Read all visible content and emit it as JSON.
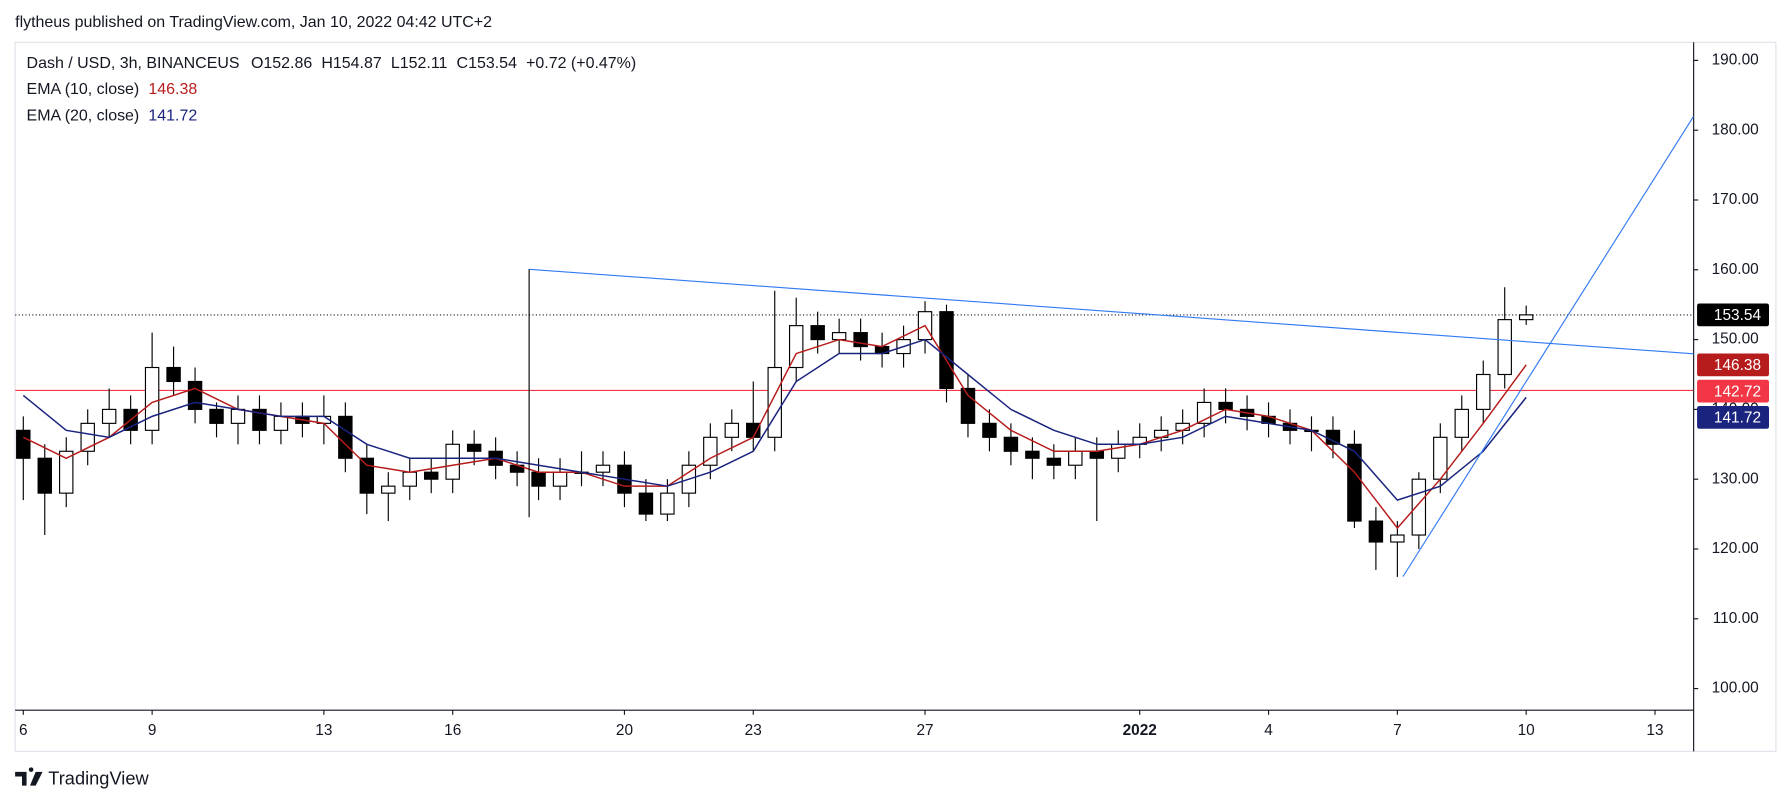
{
  "header": {
    "author_line": "flytheus published on TradingView.com, Jan 10, 2022 04:42 UTC+2",
    "brand": "TradingView"
  },
  "chart_data": {
    "type": "candlestick",
    "title": "Dash / USD, 3h, BINANCEUS",
    "ohlc_labels": [
      "O",
      "H",
      "L",
      "C"
    ],
    "change": "+0.72 (+0.47%)",
    "x": [
      0,
      0.5,
      1,
      1.5,
      2,
      2.5,
      3,
      3.5,
      4,
      4.5,
      5,
      5.5,
      6,
      6.5,
      7,
      7.5,
      8,
      8.5,
      9,
      9.5,
      10,
      10.5,
      11,
      11.5,
      12,
      12.5,
      13,
      13.5,
      14,
      14.5,
      15,
      15.5,
      16,
      16.5,
      17,
      17.5,
      18,
      18.5,
      19,
      19.5,
      20,
      20.5,
      21,
      21.5,
      22,
      22.5,
      23,
      23.5,
      24,
      24.5,
      25,
      25.5,
      26,
      26.5,
      27,
      27.5,
      28,
      28.5,
      29,
      29.5,
      30,
      30.5,
      31,
      31.5,
      32,
      32.5,
      33,
      33.5,
      34,
      34.5,
      35
    ],
    "open": [
      137,
      133,
      128,
      134,
      138,
      140,
      137,
      146,
      144,
      140,
      138,
      140,
      137,
      139,
      138,
      139,
      133,
      128,
      129,
      131,
      130,
      135,
      134,
      132,
      131,
      129,
      131,
      131,
      132,
      128,
      125,
      128,
      132,
      136,
      138,
      136,
      146,
      152,
      150,
      151,
      149,
      148,
      150,
      154,
      143,
      138,
      136,
      134,
      133,
      132,
      134,
      133,
      135,
      136,
      137,
      138,
      141,
      140,
      139,
      138,
      137,
      137,
      135,
      124,
      121,
      122,
      130,
      136,
      140,
      145,
      152.86
    ],
    "high": [
      139,
      135,
      136,
      140,
      143,
      142,
      151,
      149,
      146,
      141,
      142,
      142,
      141,
      141,
      142,
      141,
      135,
      131,
      133,
      133,
      137,
      137,
      136,
      134,
      133,
      133,
      134,
      134,
      134,
      130,
      130,
      134,
      138,
      140,
      144,
      157,
      156,
      154,
      153,
      153,
      151,
      152,
      155.5,
      155,
      145,
      140,
      138,
      136,
      135,
      136,
      136,
      137,
      138,
      139,
      140,
      143,
      143,
      142,
      141,
      140,
      139,
      139,
      137,
      126,
      124,
      131,
      138,
      142,
      147,
      157.5,
      154.87
    ],
    "low": [
      127,
      122,
      126,
      132,
      136,
      135,
      135,
      142,
      138,
      136,
      135,
      135,
      135,
      136,
      135,
      131,
      125,
      124,
      127,
      128,
      128,
      132,
      130,
      129,
      127,
      127,
      129,
      129,
      126,
      124,
      124,
      126,
      130,
      134,
      134,
      134,
      144,
      148,
      148,
      147,
      146,
      146,
      148,
      141,
      136,
      134,
      132,
      130,
      130,
      130,
      124,
      131,
      133,
      134,
      135,
      136,
      138,
      137,
      136,
      135,
      134,
      133,
      123,
      117,
      116,
      120,
      128,
      134,
      138,
      143,
      152.11
    ],
    "close": [
      133,
      128,
      134,
      138,
      140,
      137,
      146,
      144,
      140,
      138,
      140,
      137,
      139,
      138,
      139,
      133,
      128,
      129,
      131,
      130,
      135,
      134,
      132,
      131,
      129,
      131,
      131,
      132,
      128,
      125,
      128,
      132,
      136,
      138,
      136,
      146,
      152,
      150,
      151,
      149,
      148,
      150,
      154,
      143,
      138,
      136,
      134,
      133,
      132,
      134,
      133,
      135,
      136,
      137,
      138,
      141,
      140,
      139,
      138,
      137,
      137,
      135,
      124,
      121,
      122,
      130,
      136,
      140,
      145,
      152.86,
      153.54
    ],
    "up_color": "#ffffff",
    "down_color": "#000000",
    "series": [
      {
        "name": "EMA (10, close)",
        "color": "#b71c1c",
        "x": [
          0,
          1,
          2,
          3,
          4,
          5,
          6,
          7,
          8,
          9,
          10,
          11,
          12,
          13,
          14,
          15,
          16,
          17,
          18,
          19,
          20,
          21,
          22,
          23,
          24,
          25,
          26,
          27,
          28,
          29,
          30,
          31,
          32,
          33,
          34,
          35
        ],
        "values": [
          136,
          133,
          136,
          141,
          143,
          140,
          139,
          138,
          132,
          131,
          132,
          133,
          131,
          131,
          129,
          129,
          133,
          136,
          148,
          150,
          149,
          152,
          142,
          137,
          134,
          134,
          135,
          137,
          140,
          139,
          137,
          131,
          123,
          130,
          138,
          146.38
        ]
      },
      {
        "name": "EMA (20, close)",
        "color": "#1a237e",
        "x": [
          0,
          1,
          2,
          3,
          4,
          5,
          6,
          7,
          8,
          9,
          10,
          11,
          12,
          13,
          14,
          15,
          16,
          17,
          18,
          19,
          20,
          21,
          22,
          23,
          24,
          25,
          26,
          27,
          28,
          29,
          30,
          31,
          32,
          33,
          34,
          35
        ],
        "values": [
          142,
          137,
          136,
          139,
          141,
          140,
          139,
          139,
          135,
          133,
          133,
          133,
          132,
          131,
          130,
          129,
          131,
          134,
          144,
          148,
          148,
          150,
          145,
          140,
          137,
          135,
          135,
          136,
          139,
          138,
          137,
          134,
          127,
          129,
          134,
          141.72
        ]
      }
    ],
    "hlines": [
      {
        "value": 142.72,
        "color": "#f23645"
      }
    ],
    "trendlines": [
      {
        "x": [
          11.78,
          38.9
        ],
        "y": [
          160.07,
          147.96
        ],
        "color": "#3179f5"
      },
      {
        "x": [
          11.78,
          11.78
        ],
        "y": [
          160.07,
          124.55
        ],
        "color": "#000000"
      },
      {
        "x": [
          32.13,
          38.9
        ],
        "y": [
          116.04,
          182
        ],
        "color": "#3179f5"
      }
    ],
    "xlim": [
      -0.19,
      38.9
    ],
    "ylim": [
      96.9,
      192.6
    ],
    "xticks": [
      {
        "value": 0,
        "label": "6"
      },
      {
        "value": 3,
        "label": "9"
      },
      {
        "value": 7,
        "label": "13"
      },
      {
        "value": 10,
        "label": "16"
      },
      {
        "value": 14,
        "label": "20"
      },
      {
        "value": 17,
        "label": "23"
      },
      {
        "value": 21,
        "label": "27"
      },
      {
        "value": 26,
        "label": "2022"
      },
      {
        "value": 29,
        "label": "4"
      },
      {
        "value": 32,
        "label": "7"
      },
      {
        "value": 35,
        "label": "10"
      },
      {
        "value": 38,
        "label": "13"
      }
    ],
    "yticks": [
      {
        "value": 100,
        "label": "100.00"
      },
      {
        "value": 110,
        "label": "110.00"
      },
      {
        "value": 120,
        "label": "120.00"
      },
      {
        "value": 130,
        "label": "130.00"
      },
      {
        "value": 140,
        "label": "140.00"
      },
      {
        "value": 150,
        "label": "150.00"
      },
      {
        "value": 160,
        "label": "160.00"
      },
      {
        "value": 170,
        "label": "170.00"
      },
      {
        "value": 180,
        "label": "180.00"
      },
      {
        "value": 190,
        "label": "190.00"
      }
    ]
  }
}
